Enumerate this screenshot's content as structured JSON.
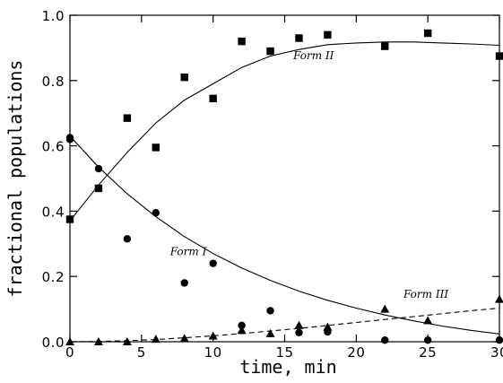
{
  "chart_data": {
    "type": "scatter",
    "title": "",
    "xlabel": "time, min",
    "ylabel": "fractional populations",
    "xlim": [
      0,
      30
    ],
    "ylim": [
      0,
      1.0
    ],
    "x_ticks": [
      0,
      5,
      10,
      15,
      20,
      25,
      30
    ],
    "x_tick_labels": [
      "0",
      "5",
      "10",
      "15",
      "20",
      "25",
      "30"
    ],
    "y_ticks": [
      0,
      0.2,
      0.4,
      0.6,
      0.8,
      1.0
    ],
    "y_tick_labels": [
      "0.0",
      "0.2",
      "0.4",
      "0.6",
      "0.8",
      "1.0"
    ],
    "grid": false,
    "series": [
      {
        "name": "Form I",
        "marker": "circle",
        "points": [
          [
            0,
            0.625
          ],
          [
            0,
            0.62
          ],
          [
            2,
            0.53
          ],
          [
            4,
            0.315
          ],
          [
            6,
            0.395
          ],
          [
            8,
            0.18
          ],
          [
            10,
            0.24
          ],
          [
            12,
            0.05
          ],
          [
            14,
            0.095
          ],
          [
            16,
            0.028
          ],
          [
            18,
            0.03
          ],
          [
            22,
            0.005
          ],
          [
            25,
            0.005
          ],
          [
            30,
            0.005
          ]
        ],
        "fit": {
          "style": "solid",
          "points": [
            [
              0,
              0.63
            ],
            [
              2,
              0.535
            ],
            [
              4,
              0.453
            ],
            [
              6,
              0.383
            ],
            [
              8,
              0.322
            ],
            [
              10,
              0.27
            ],
            [
              12,
              0.226
            ],
            [
              14,
              0.188
            ],
            [
              16,
              0.155
            ],
            [
              18,
              0.127
            ],
            [
              20,
              0.103
            ],
            [
              22,
              0.082
            ],
            [
              24,
              0.064
            ],
            [
              26,
              0.048
            ],
            [
              28,
              0.035
            ],
            [
              30,
              0.024
            ]
          ]
        }
      },
      {
        "name": "Form II",
        "marker": "square",
        "points": [
          [
            0,
            0.375
          ],
          [
            2,
            0.47
          ],
          [
            4,
            0.685
          ],
          [
            6,
            0.595
          ],
          [
            8,
            0.81
          ],
          [
            10,
            0.745
          ],
          [
            12,
            0.92
          ],
          [
            14,
            0.89
          ],
          [
            16,
            0.93
          ],
          [
            18,
            0.94
          ],
          [
            22,
            0.905
          ],
          [
            25,
            0.945
          ],
          [
            30,
            0.875
          ]
        ],
        "fit": {
          "style": "solid",
          "points": [
            [
              0,
              0.37
            ],
            [
              2,
              0.48
            ],
            [
              4,
              0.58
            ],
            [
              6,
              0.67
            ],
            [
              8,
              0.74
            ],
            [
              10,
              0.79
            ],
            [
              12,
              0.84
            ],
            [
              14,
              0.875
            ],
            [
              16,
              0.895
            ],
            [
              18,
              0.91
            ],
            [
              20,
              0.915
            ],
            [
              22,
              0.918
            ],
            [
              24,
              0.918
            ],
            [
              26,
              0.915
            ],
            [
              28,
              0.912
            ],
            [
              30,
              0.908
            ]
          ]
        }
      },
      {
        "name": "Form III",
        "marker": "triangle",
        "points": [
          [
            0,
            0.0
          ],
          [
            2,
            0.0
          ],
          [
            4,
            0.0
          ],
          [
            6,
            0.008
          ],
          [
            8,
            0.01
          ],
          [
            10,
            0.018
          ],
          [
            12,
            0.035
          ],
          [
            14,
            0.025
          ],
          [
            16,
            0.05
          ],
          [
            18,
            0.045
          ],
          [
            22,
            0.1
          ],
          [
            25,
            0.065
          ],
          [
            30,
            0.13
          ]
        ],
        "fit": {
          "style": "dashed",
          "points": [
            [
              0,
              0.0
            ],
            [
              2,
              0.001
            ],
            [
              4,
              0.003
            ],
            [
              6,
              0.007
            ],
            [
              8,
              0.012
            ],
            [
              10,
              0.018
            ],
            [
              12,
              0.025
            ],
            [
              14,
              0.033
            ],
            [
              16,
              0.041
            ],
            [
              18,
              0.05
            ],
            [
              20,
              0.059
            ],
            [
              22,
              0.068
            ],
            [
              24,
              0.077
            ],
            [
              26,
              0.086
            ],
            [
              28,
              0.095
            ],
            [
              30,
              0.103
            ]
          ]
        }
      }
    ]
  }
}
